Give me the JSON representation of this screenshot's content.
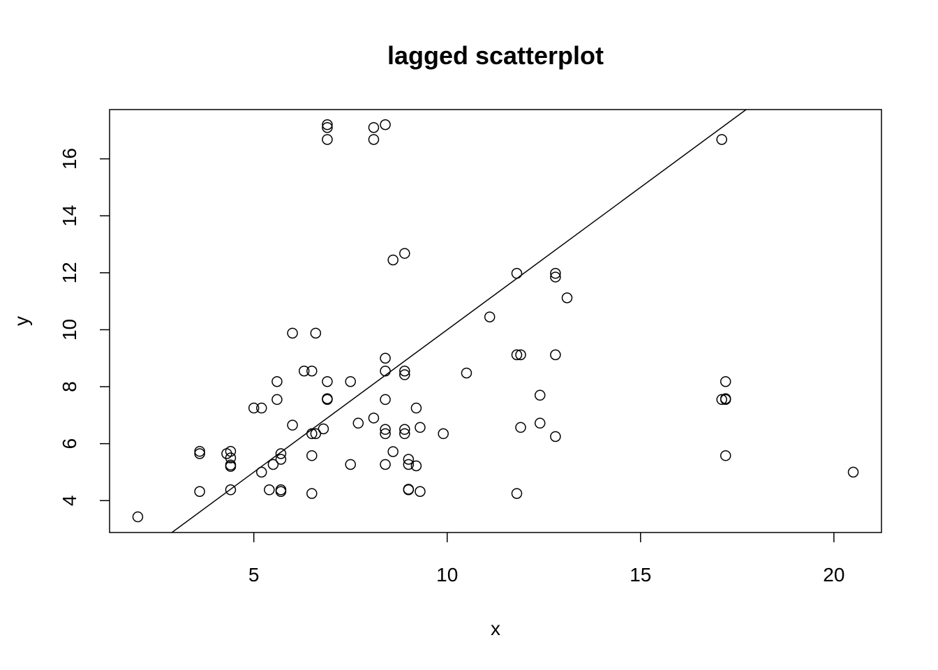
{
  "chart_data": {
    "type": "scatter",
    "title": "lagged scatterplot",
    "xlabel": "x",
    "ylabel": "y",
    "xlim": [
      1.27,
      21.23
    ],
    "ylim": [
      2.88,
      17.73
    ],
    "xticks": [
      5,
      10,
      15,
      20
    ],
    "yticks": [
      4,
      6,
      8,
      10,
      12,
      14,
      16
    ],
    "grid": false,
    "legend": "none",
    "fit_line": {
      "slope": 1.0,
      "intercept": 0.0
    },
    "points": [
      [
        2.0,
        3.43
      ],
      [
        3.6,
        5.73
      ],
      [
        3.6,
        5.65
      ],
      [
        3.6,
        4.32
      ],
      [
        4.3,
        5.65
      ],
      [
        4.4,
        5.73
      ],
      [
        4.4,
        5.5
      ],
      [
        4.4,
        5.25
      ],
      [
        4.4,
        5.2
      ],
      [
        4.4,
        4.38
      ],
      [
        5.0,
        7.25
      ],
      [
        5.2,
        7.25
      ],
      [
        5.2,
        5.0
      ],
      [
        5.4,
        4.38
      ],
      [
        5.5,
        5.27
      ],
      [
        5.6,
        8.18
      ],
      [
        5.6,
        7.55
      ],
      [
        5.7,
        5.65
      ],
      [
        5.7,
        5.45
      ],
      [
        5.7,
        4.38
      ],
      [
        5.7,
        4.32
      ],
      [
        6.0,
        9.88
      ],
      [
        6.0,
        6.65
      ],
      [
        6.3,
        8.55
      ],
      [
        6.5,
        8.55
      ],
      [
        6.5,
        6.35
      ],
      [
        6.5,
        5.58
      ],
      [
        6.5,
        4.25
      ],
      [
        6.6,
        9.88
      ],
      [
        6.6,
        6.35
      ],
      [
        6.8,
        6.52
      ],
      [
        6.9,
        17.2
      ],
      [
        6.9,
        17.1
      ],
      [
        6.9,
        16.68
      ],
      [
        6.9,
        8.18
      ],
      [
        6.9,
        7.58
      ],
      [
        6.9,
        7.55
      ],
      [
        7.5,
        8.18
      ],
      [
        7.5,
        5.27
      ],
      [
        7.7,
        6.72
      ],
      [
        8.1,
        17.1
      ],
      [
        8.1,
        16.68
      ],
      [
        8.1,
        6.9
      ],
      [
        8.4,
        17.2
      ],
      [
        8.4,
        9.0
      ],
      [
        8.4,
        8.55
      ],
      [
        8.4,
        7.55
      ],
      [
        8.4,
        6.5
      ],
      [
        8.4,
        6.35
      ],
      [
        8.4,
        5.27
      ],
      [
        8.6,
        12.45
      ],
      [
        8.6,
        5.72
      ],
      [
        8.9,
        12.68
      ],
      [
        8.9,
        8.55
      ],
      [
        8.9,
        8.42
      ],
      [
        8.9,
        6.5
      ],
      [
        8.9,
        6.35
      ],
      [
        9.0,
        5.45
      ],
      [
        9.0,
        5.27
      ],
      [
        9.0,
        4.4
      ],
      [
        9.0,
        4.38
      ],
      [
        9.2,
        7.25
      ],
      [
        9.2,
        5.22
      ],
      [
        9.3,
        6.57
      ],
      [
        9.3,
        4.32
      ],
      [
        9.9,
        6.35
      ],
      [
        10.5,
        8.48
      ],
      [
        11.1,
        10.45
      ],
      [
        11.8,
        11.98
      ],
      [
        11.8,
        9.12
      ],
      [
        11.8,
        4.25
      ],
      [
        11.9,
        9.12
      ],
      [
        11.9,
        6.57
      ],
      [
        12.4,
        7.7
      ],
      [
        12.4,
        6.72
      ],
      [
        12.8,
        11.98
      ],
      [
        12.8,
        11.85
      ],
      [
        12.8,
        9.12
      ],
      [
        12.8,
        6.25
      ],
      [
        13.1,
        11.12
      ],
      [
        17.1,
        16.68
      ],
      [
        17.1,
        7.55
      ],
      [
        17.2,
        8.18
      ],
      [
        17.2,
        7.58
      ],
      [
        17.2,
        7.55
      ],
      [
        17.2,
        5.58
      ],
      [
        20.5,
        5.0
      ]
    ]
  }
}
